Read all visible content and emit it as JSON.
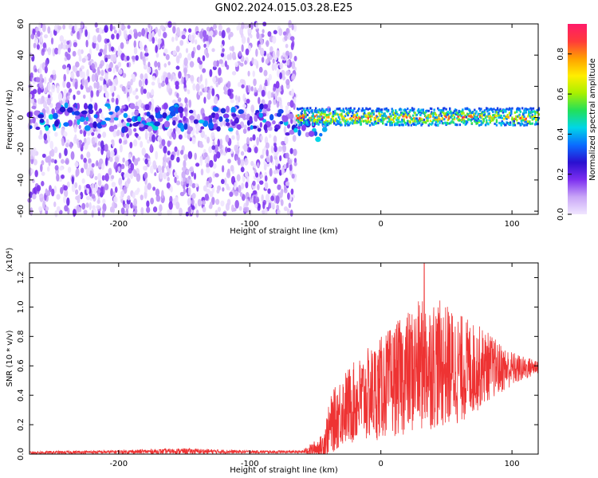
{
  "title": "GN02.2024.015.03.28.E25",
  "chart_data": [
    {
      "type": "heatmap",
      "xlabel": "Height of straight line (km)",
      "ylabel": "Frequency (Hz)",
      "xlim": [
        -268,
        120
      ],
      "ylim": [
        -62,
        60
      ],
      "x_ticks": [
        -200,
        -100,
        0,
        100
      ],
      "y_ticks": [
        -60,
        -40,
        -20,
        0,
        20,
        40,
        60
      ],
      "colorbar": {
        "label": "Normalized spectral amplitude",
        "range": [
          0,
          0.95
        ],
        "ticks": [
          0.0,
          0.2,
          0.4,
          0.6,
          0.8
        ],
        "colormap": [
          "#f0e6ff",
          "#c9a6f7",
          "#7d2ff0",
          "#2a10d0",
          "#0a6cff",
          "#00d6e8",
          "#22e05a",
          "#a8f000",
          "#ffee00",
          "#ffa000",
          "#ff3a3a",
          "#ff1a6a"
        ]
      },
      "regions": [
        {
          "name": "noise",
          "x_range": [
            -268,
            -65
          ],
          "freq_range": [
            -62,
            60
          ],
          "amplitude": [
            0.0,
            0.2
          ]
        },
        {
          "name": "signal",
          "x_range": [
            -65,
            120
          ],
          "center_freq_hz": 0,
          "band_hz": [
            -5,
            6
          ],
          "amplitude": [
            0.3,
            0.95
          ]
        }
      ]
    },
    {
      "type": "line",
      "xlabel": "Height of straight line (km)",
      "ylabel": "SNR (10 * v/v)",
      "y_scale_label": "(x10⁴)",
      "xlim": [
        -268,
        120
      ],
      "ylim": [
        0,
        1.3
      ],
      "x_ticks": [
        -200,
        -100,
        0,
        100
      ],
      "y_ticks": [
        0.0,
        0.2,
        0.4,
        0.6,
        0.8,
        1.0,
        1.2
      ],
      "color": "#ee3333",
      "envelope": {
        "x": [
          -268,
          -200,
          -150,
          -100,
          -60,
          -45,
          -38,
          -30,
          -20,
          -10,
          0,
          10,
          20,
          30,
          40,
          50,
          60,
          70,
          80,
          90,
          100,
          110,
          120
        ],
        "mean": [
          0.01,
          0.015,
          0.02,
          0.015,
          0.015,
          0.05,
          0.2,
          0.3,
          0.35,
          0.4,
          0.45,
          0.5,
          0.55,
          0.6,
          0.62,
          0.6,
          0.58,
          0.58,
          0.6,
          0.58,
          0.58,
          0.58,
          0.6
        ],
        "amp": [
          0.01,
          0.012,
          0.02,
          0.01,
          0.01,
          0.08,
          0.2,
          0.25,
          0.28,
          0.32,
          0.35,
          0.38,
          0.42,
          0.45,
          0.45,
          0.42,
          0.38,
          0.32,
          0.25,
          0.18,
          0.12,
          0.08,
          0.05
        ],
        "peak": {
          "x": 33,
          "y": 1.3
        }
      }
    }
  ]
}
